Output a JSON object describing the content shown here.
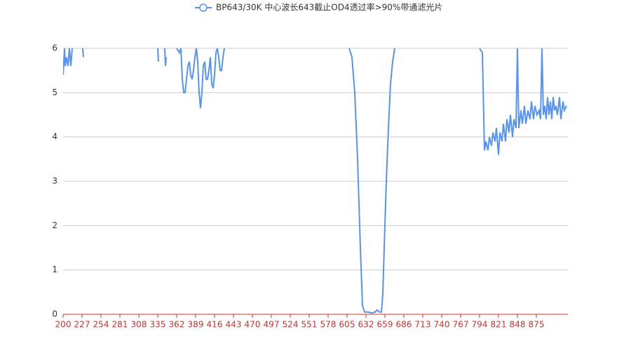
{
  "chart_data": {
    "type": "line",
    "x": [
      200,
      202,
      203,
      205,
      207,
      209,
      211,
      213,
      215,
      228,
      229,
      230,
      335,
      336,
      337,
      345,
      346,
      347,
      348,
      362,
      366,
      368,
      370,
      372,
      374,
      376,
      378,
      380,
      382,
      384,
      386,
      388,
      390,
      392,
      394,
      396,
      398,
      400,
      402,
      404,
      406,
      408,
      410,
      412,
      414,
      416,
      418,
      420,
      422,
      424,
      426,
      428,
      430,
      500,
      608,
      612,
      616,
      620,
      624,
      627,
      630,
      635,
      640,
      645,
      648,
      651,
      654,
      656,
      658,
      661,
      664,
      667,
      670,
      673,
      700,
      794,
      798,
      801,
      803,
      806,
      808,
      811,
      813,
      816,
      818,
      821,
      823,
      826,
      828,
      831,
      833,
      836,
      838,
      841,
      843,
      846,
      848,
      850,
      853,
      855,
      858,
      860,
      863,
      866,
      868,
      871,
      873,
      876,
      879,
      881,
      883,
      885,
      887,
      889,
      891,
      893,
      895,
      897,
      899,
      901,
      903,
      905,
      908,
      910,
      913,
      915,
      918
    ],
    "series": [
      {
        "name": "BP643/30K 中心波长643截止OD4透过率>90%带通滤光片",
        "color": "#5793f3",
        "values": [
          5.4,
          6,
          5.6,
          5.8,
          5.6,
          6,
          5.6,
          6,
          null,
          6,
          5.8,
          null,
          6,
          5.7,
          null,
          6,
          5.6,
          5.8,
          null,
          6,
          5.9,
          6,
          5.3,
          5.0,
          5.0,
          5.3,
          5.6,
          5.7,
          5.4,
          5.3,
          5.5,
          5.8,
          6,
          5.7,
          5.0,
          4.65,
          5.0,
          5.6,
          5.7,
          5.3,
          5.3,
          5.5,
          5.8,
          5.2,
          5.1,
          5.4,
          5.9,
          6,
          5.8,
          5.5,
          5.5,
          5.8,
          6,
          null,
          6,
          5.8,
          5.0,
          3.5,
          1.5,
          0.2,
          0.05,
          0.05,
          0.03,
          0.05,
          0.1,
          0.05,
          0.05,
          0.45,
          1.5,
          3.0,
          4.2,
          5.2,
          5.7,
          6,
          null,
          6,
          5.9,
          3.7,
          3.9,
          3.7,
          4.0,
          3.8,
          4.1,
          3.9,
          4.2,
          3.6,
          4.1,
          3.9,
          4.3,
          3.9,
          4.4,
          4.1,
          4.5,
          4.0,
          4.4,
          4.2,
          6,
          4.2,
          4.6,
          4.3,
          4.7,
          4.3,
          4.6,
          4.4,
          4.8,
          4.4,
          4.7,
          4.5,
          4.6,
          4.4,
          6,
          4.5,
          4.7,
          4.4,
          4.9,
          4.5,
          4.8,
          4.4,
          4.9,
          4.6,
          4.7,
          4.5,
          4.9,
          4.4,
          4.8,
          4.6,
          4.7
        ]
      }
    ],
    "xlim": [
      200,
      920
    ],
    "xticks": [
      200,
      227,
      254,
      281,
      308,
      335,
      362,
      389,
      416,
      443,
      470,
      497,
      524,
      551,
      578,
      605,
      632,
      659,
      686,
      713,
      740,
      767,
      794,
      821,
      848,
      875
    ],
    "ylim": [
      0,
      6
    ],
    "yticks": [
      0,
      1,
      2,
      3,
      4,
      5,
      6
    ],
    "grid": true,
    "x_axis_color": "#c23531",
    "legend_position": "top"
  }
}
